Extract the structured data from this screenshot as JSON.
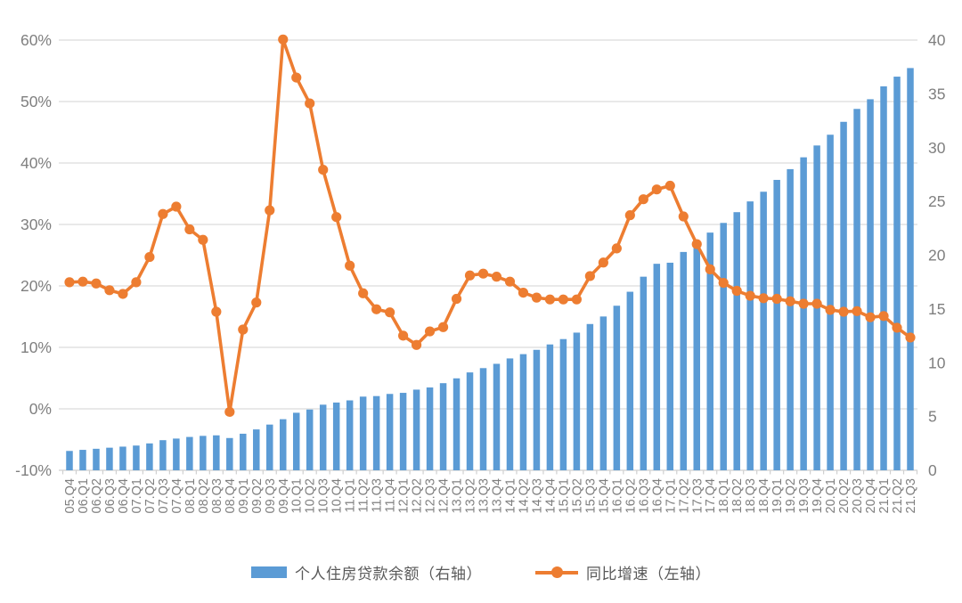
{
  "chart_data": {
    "type": "bar",
    "combo": [
      "bar",
      "line"
    ],
    "title": "",
    "categories": [
      "05.Q4",
      "06.Q1",
      "06.Q2",
      "06.Q3",
      "06.Q4",
      "07.Q1",
      "07.Q2",
      "07.Q3",
      "07.Q4",
      "08.Q1",
      "08.Q2",
      "08.Q3",
      "08.Q4",
      "09.Q1",
      "09.Q2",
      "09.Q3",
      "09.Q4",
      "10.Q1",
      "10.Q2",
      "10.Q3",
      "10.Q4",
      "11.Q1",
      "11.Q2",
      "11.Q3",
      "11.Q4",
      "12.Q1",
      "12.Q2",
      "12.Q3",
      "12.Q4",
      "13.Q1",
      "13.Q2",
      "13.Q3",
      "13.Q4",
      "14.Q1",
      "14.Q2",
      "14.Q3",
      "14.Q4",
      "15.Q1",
      "15.Q2",
      "15.Q3",
      "15.Q4",
      "16.Q1",
      "16.Q2",
      "16.Q3",
      "16.Q4",
      "17.Q1",
      "17.Q2",
      "17.Q3",
      "17.Q4",
      "18.Q1",
      "18.Q2",
      "18.Q3",
      "18.Q4",
      "19.Q1",
      "19.Q2",
      "19.Q3",
      "19.Q4",
      "20.Q1",
      "20.Q2",
      "20.Q3",
      "20.Q4",
      "21.Q1",
      "21.Q2",
      "21.Q3"
    ],
    "series": [
      {
        "name": "个人住房贷款余额（右轴）",
        "type": "bar",
        "axis": "right",
        "color": "#5B9BD5",
        "values": [
          1.8,
          1.9,
          2.0,
          2.1,
          2.2,
          2.3,
          2.5,
          2.8,
          2.95,
          3.1,
          3.2,
          3.25,
          3.0,
          3.4,
          3.8,
          4.25,
          4.75,
          5.35,
          5.65,
          6.1,
          6.3,
          6.5,
          6.85,
          6.9,
          7.1,
          7.2,
          7.5,
          7.7,
          8.1,
          8.55,
          9.1,
          9.5,
          9.9,
          10.4,
          10.8,
          11.2,
          11.7,
          12.2,
          12.8,
          13.6,
          14.3,
          15.3,
          16.6,
          18.0,
          19.2,
          19.3,
          20.3,
          21.2,
          22.1,
          23.0,
          24.0,
          25.0,
          25.9,
          27.0,
          28.0,
          29.1,
          30.2,
          31.2,
          32.4,
          33.6,
          34.5,
          35.7,
          36.6,
          37.4
        ]
      },
      {
        "name": "同比增速（左轴）",
        "type": "line",
        "axis": "left",
        "color": "#ED7D31",
        "values": [
          20.6,
          20.7,
          20.4,
          19.3,
          18.7,
          20.6,
          24.7,
          31.7,
          32.9,
          29.2,
          27.5,
          15.8,
          -0.5,
          12.9,
          17.3,
          32.3,
          60.1,
          53.9,
          49.7,
          38.9,
          31.2,
          23.3,
          18.8,
          16.2,
          15.7,
          11.9,
          10.4,
          12.6,
          13.3,
          17.9,
          21.7,
          22.0,
          21.5,
          20.7,
          18.9,
          18.1,
          17.8,
          17.8,
          17.8,
          21.6,
          23.8,
          26.1,
          31.5,
          34.1,
          35.7,
          36.3,
          31.3,
          26.8,
          22.7,
          20.5,
          19.2,
          18.4,
          18.0,
          17.9,
          17.5,
          17.1,
          17.1,
          16.1,
          15.8,
          15.9,
          14.9,
          15.1,
          13.2,
          11.6
        ]
      }
    ],
    "left_axis": {
      "min": -10,
      "max": 60,
      "unit": "%",
      "tick_values": [
        60,
        50,
        40,
        30,
        20,
        10,
        0,
        -10
      ],
      "tick_labels": [
        "60%",
        "50%",
        "40%",
        "30%",
        "20%",
        "10%",
        "0%",
        "-10%"
      ]
    },
    "right_axis": {
      "min": 0,
      "max": 40,
      "tick_values": [
        40,
        35,
        30,
        25,
        20,
        15,
        10,
        5,
        0
      ],
      "tick_labels": [
        "40",
        "35",
        "30",
        "25",
        "20",
        "15",
        "10",
        "5",
        "0"
      ]
    },
    "grid": true,
    "legend_position": "bottom",
    "colors": {
      "grid": "#DCDCDC",
      "axis_line": "#D0D0D0",
      "axis_text": "#7F7F7F",
      "legend_text": "#595959",
      "background": "#FFFFFF"
    }
  }
}
